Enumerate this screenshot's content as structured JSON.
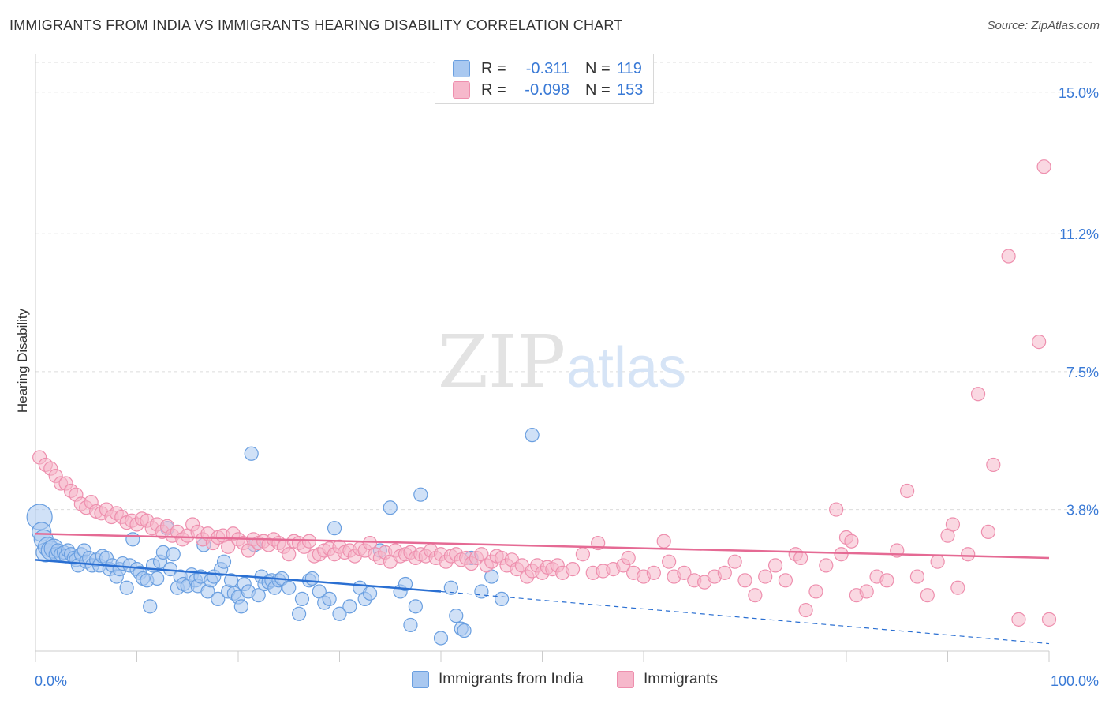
{
  "header": {
    "title": "IMMIGRANTS FROM INDIA VS IMMIGRANTS HEARING DISABILITY CORRELATION CHART",
    "source": "Source: ZipAtlas.com"
  },
  "watermark": {
    "zip": "ZIP",
    "atlas": "atlas"
  },
  "legend_top": {
    "rows": [
      {
        "r_label": "R =",
        "r_value": "-0.311",
        "n_label": "N =",
        "n_value": "119",
        "color": "#a9c8f0"
      },
      {
        "r_label": "R =",
        "r_value": "-0.098",
        "n_label": "N =",
        "n_value": "153",
        "color": "#f6b8cb"
      }
    ]
  },
  "legend_bottom": [
    {
      "label": "Immigrants from India",
      "color": "#a9c8f0"
    },
    {
      "label": "Immigrants",
      "color": "#f6b8cb"
    }
  ],
  "chart_data": {
    "type": "scatter",
    "title": "IMMIGRANTS FROM INDIA VS IMMIGRANTS HEARING DISABILITY CORRELATION CHART",
    "xlabel": "",
    "ylabel": "Hearing Disability",
    "xlim": [
      0,
      100
    ],
    "ylim": [
      0,
      15.8
    ],
    "y_ticks": [
      3.8,
      7.5,
      11.2,
      15.0
    ],
    "y_tick_labels": [
      "3.8%",
      "7.5%",
      "11.2%",
      "15.0%"
    ],
    "x_tick_labels": [
      "0.0%",
      "100.0%"
    ],
    "grid": true,
    "legend_position": "top-center",
    "colors": {
      "blue_fill": "#a9c8f0",
      "blue_stroke": "#6a9fe0",
      "blue_line": "#2a6fd2",
      "pink_fill": "#f6b8cb",
      "pink_stroke": "#ee8fae",
      "pink_line": "#e56a94",
      "tick_label": "#3a7ad6",
      "grid": "#dcdcdc"
    },
    "series": [
      {
        "name": "Immigrants from India",
        "trend": {
          "x": [
            0,
            40
          ],
          "y": [
            2.45,
            1.6
          ],
          "dashed_to": [
            100,
            0.2
          ]
        },
        "points": [
          [
            0.4,
            3.6
          ],
          [
            0.6,
            3.2
          ],
          [
            0.8,
            3.0
          ],
          [
            1,
            2.65
          ],
          [
            1.2,
            2.8
          ],
          [
            1.5,
            2.7
          ],
          [
            1.8,
            2.75
          ],
          [
            2,
            2.6
          ],
          [
            2.2,
            2.7
          ],
          [
            2.5,
            2.6
          ],
          [
            2.8,
            2.65
          ],
          [
            3,
            2.55
          ],
          [
            3.2,
            2.7
          ],
          [
            3.5,
            2.6
          ],
          [
            3.8,
            2.5
          ],
          [
            4,
            2.45
          ],
          [
            4.2,
            2.3
          ],
          [
            4.5,
            2.6
          ],
          [
            4.8,
            2.7
          ],
          [
            5,
            2.4
          ],
          [
            5.3,
            2.5
          ],
          [
            5.6,
            2.3
          ],
          [
            6,
            2.45
          ],
          [
            6.3,
            2.3
          ],
          [
            6.6,
            2.55
          ],
          [
            7,
            2.5
          ],
          [
            7.3,
            2.2
          ],
          [
            7.6,
            2.3
          ],
          [
            8,
            2.0
          ],
          [
            8.3,
            2.2
          ],
          [
            8.6,
            2.35
          ],
          [
            9,
            1.7
          ],
          [
            9.3,
            2.3
          ],
          [
            9.6,
            3.0
          ],
          [
            10,
            2.2
          ],
          [
            10.3,
            2.1
          ],
          [
            10.6,
            1.95
          ],
          [
            11,
            1.9
          ],
          [
            11.3,
            1.2
          ],
          [
            11.6,
            2.3
          ],
          [
            12,
            1.95
          ],
          [
            12.3,
            2.4
          ],
          [
            12.6,
            2.65
          ],
          [
            13,
            3.3
          ],
          [
            13.3,
            2.2
          ],
          [
            13.6,
            2.6
          ],
          [
            14,
            1.7
          ],
          [
            14.3,
            2.0
          ],
          [
            14.6,
            1.8
          ],
          [
            15,
            1.75
          ],
          [
            15.4,
            2.05
          ],
          [
            15.8,
            1.9
          ],
          [
            16,
            1.75
          ],
          [
            16.3,
            2.0
          ],
          [
            16.6,
            2.85
          ],
          [
            17,
            1.6
          ],
          [
            17.3,
            1.9
          ],
          [
            17.6,
            2.0
          ],
          [
            18,
            1.4
          ],
          [
            18.3,
            2.2
          ],
          [
            18.6,
            2.4
          ],
          [
            19,
            1.6
          ],
          [
            19.3,
            1.9
          ],
          [
            19.6,
            1.55
          ],
          [
            20,
            1.45
          ],
          [
            20.3,
            1.2
          ],
          [
            20.6,
            1.8
          ],
          [
            21,
            1.6
          ],
          [
            21.3,
            5.3
          ],
          [
            21.6,
            2.85
          ],
          [
            22,
            1.5
          ],
          [
            22.3,
            2.0
          ],
          [
            22.6,
            1.8
          ],
          [
            23,
            1.85
          ],
          [
            23.3,
            1.9
          ],
          [
            23.6,
            1.7
          ],
          [
            24,
            1.9
          ],
          [
            24.3,
            1.95
          ],
          [
            25,
            1.7
          ],
          [
            26,
            1.0
          ],
          [
            26.3,
            1.4
          ],
          [
            27,
            1.9
          ],
          [
            27.3,
            1.95
          ],
          [
            28,
            1.6
          ],
          [
            28.5,
            1.3
          ],
          [
            29,
            1.4
          ],
          [
            29.5,
            3.3
          ],
          [
            30,
            1.0
          ],
          [
            31,
            1.2
          ],
          [
            32,
            1.7
          ],
          [
            32.5,
            1.4
          ],
          [
            33,
            1.55
          ],
          [
            34,
            2.7
          ],
          [
            35,
            3.85
          ],
          [
            36,
            1.6
          ],
          [
            36.5,
            1.8
          ],
          [
            37,
            0.7
          ],
          [
            37.5,
            1.2
          ],
          [
            38,
            4.2
          ],
          [
            40,
            0.35
          ],
          [
            41,
            1.7
          ],
          [
            41.5,
            0.95
          ],
          [
            42,
            0.6
          ],
          [
            42.3,
            0.55
          ],
          [
            43,
            2.5
          ],
          [
            44,
            1.6
          ],
          [
            45,
            2.0
          ],
          [
            46,
            1.4
          ],
          [
            49,
            5.8
          ]
        ]
      },
      {
        "name": "Immigrants",
        "trend": {
          "x": [
            0,
            100
          ],
          "y": [
            3.15,
            2.5
          ]
        },
        "points": [
          [
            0.4,
            5.2
          ],
          [
            1,
            5.0
          ],
          [
            1.5,
            4.9
          ],
          [
            2,
            4.7
          ],
          [
            2.5,
            4.5
          ],
          [
            3,
            4.5
          ],
          [
            3.5,
            4.3
          ],
          [
            4,
            4.2
          ],
          [
            4.5,
            3.95
          ],
          [
            5,
            3.85
          ],
          [
            5.5,
            4.0
          ],
          [
            6,
            3.75
          ],
          [
            6.5,
            3.7
          ],
          [
            7,
            3.8
          ],
          [
            7.5,
            3.6
          ],
          [
            8,
            3.7
          ],
          [
            8.5,
            3.6
          ],
          [
            9,
            3.45
          ],
          [
            9.5,
            3.5
          ],
          [
            10,
            3.4
          ],
          [
            10.5,
            3.55
          ],
          [
            11,
            3.5
          ],
          [
            11.5,
            3.3
          ],
          [
            12,
            3.4
          ],
          [
            12.5,
            3.2
          ],
          [
            13,
            3.35
          ],
          [
            13.5,
            3.1
          ],
          [
            14,
            3.2
          ],
          [
            14.5,
            3.0
          ],
          [
            15,
            3.1
          ],
          [
            15.5,
            3.4
          ],
          [
            16,
            3.2
          ],
          [
            16.5,
            3.0
          ],
          [
            17,
            3.15
          ],
          [
            17.5,
            2.9
          ],
          [
            18,
            3.05
          ],
          [
            18.5,
            3.1
          ],
          [
            19,
            2.8
          ],
          [
            19.5,
            3.15
          ],
          [
            20,
            3.0
          ],
          [
            20.5,
            2.9
          ],
          [
            21,
            2.7
          ],
          [
            21.5,
            3.0
          ],
          [
            22,
            2.9
          ],
          [
            22.5,
            2.95
          ],
          [
            23,
            2.85
          ],
          [
            23.5,
            3.0
          ],
          [
            24,
            2.9
          ],
          [
            24.5,
            2.8
          ],
          [
            25,
            2.6
          ],
          [
            25.5,
            2.95
          ],
          [
            26,
            2.9
          ],
          [
            26.5,
            2.8
          ],
          [
            27,
            2.95
          ],
          [
            27.5,
            2.55
          ],
          [
            28,
            2.6
          ],
          [
            28.5,
            2.7
          ],
          [
            29,
            2.75
          ],
          [
            29.5,
            2.6
          ],
          [
            30,
            2.8
          ],
          [
            30.5,
            2.65
          ],
          [
            31,
            2.7
          ],
          [
            31.5,
            2.55
          ],
          [
            32,
            2.75
          ],
          [
            32.5,
            2.7
          ],
          [
            33,
            2.9
          ],
          [
            33.5,
            2.6
          ],
          [
            34,
            2.5
          ],
          [
            34.5,
            2.65
          ],
          [
            35,
            2.4
          ],
          [
            35.5,
            2.7
          ],
          [
            36,
            2.55
          ],
          [
            36.5,
            2.6
          ],
          [
            37,
            2.65
          ],
          [
            37.5,
            2.5
          ],
          [
            38,
            2.6
          ],
          [
            38.5,
            2.55
          ],
          [
            39,
            2.7
          ],
          [
            39.5,
            2.5
          ],
          [
            40,
            2.6
          ],
          [
            40.5,
            2.4
          ],
          [
            41,
            2.55
          ],
          [
            41.5,
            2.6
          ],
          [
            42,
            2.45
          ],
          [
            42.5,
            2.5
          ],
          [
            43,
            2.35
          ],
          [
            43.5,
            2.5
          ],
          [
            44,
            2.6
          ],
          [
            44.5,
            2.3
          ],
          [
            45,
            2.4
          ],
          [
            45.5,
            2.55
          ],
          [
            46,
            2.5
          ],
          [
            46.5,
            2.3
          ],
          [
            47,
            2.45
          ],
          [
            47.5,
            2.2
          ],
          [
            48,
            2.3
          ],
          [
            48.5,
            2.0
          ],
          [
            49,
            2.15
          ],
          [
            49.5,
            2.3
          ],
          [
            50,
            2.1
          ],
          [
            50.5,
            2.25
          ],
          [
            51,
            2.2
          ],
          [
            51.5,
            2.3
          ],
          [
            52,
            2.1
          ],
          [
            53,
            2.2
          ],
          [
            54,
            2.6
          ],
          [
            55,
            2.1
          ],
          [
            55.5,
            2.9
          ],
          [
            56,
            2.15
          ],
          [
            57,
            2.2
          ],
          [
            58,
            2.3
          ],
          [
            58.5,
            2.5
          ],
          [
            59,
            2.1
          ],
          [
            60,
            2.0
          ],
          [
            61,
            2.1
          ],
          [
            62,
            2.95
          ],
          [
            62.5,
            2.4
          ],
          [
            63,
            2.0
          ],
          [
            64,
            2.1
          ],
          [
            65,
            1.9
          ],
          [
            66,
            1.85
          ],
          [
            67,
            2.0
          ],
          [
            68,
            2.1
          ],
          [
            69,
            2.4
          ],
          [
            70,
            1.9
          ],
          [
            71,
            1.5
          ],
          [
            72,
            2.0
          ],
          [
            73,
            2.3
          ],
          [
            74,
            1.9
          ],
          [
            75,
            2.6
          ],
          [
            75.5,
            2.5
          ],
          [
            76,
            1.1
          ],
          [
            77,
            1.6
          ],
          [
            78,
            2.3
          ],
          [
            79,
            3.8
          ],
          [
            79.5,
            2.6
          ],
          [
            80,
            3.05
          ],
          [
            80.5,
            2.95
          ],
          [
            81,
            1.5
          ],
          [
            82,
            1.6
          ],
          [
            83,
            2.0
          ],
          [
            84,
            1.9
          ],
          [
            85,
            2.7
          ],
          [
            86,
            4.3
          ],
          [
            87,
            2.0
          ],
          [
            88,
            1.5
          ],
          [
            89,
            2.4
          ],
          [
            90,
            3.1
          ],
          [
            90.5,
            3.4
          ],
          [
            91,
            1.7
          ],
          [
            92,
            2.6
          ],
          [
            93,
            6.9
          ],
          [
            94,
            3.2
          ],
          [
            94.5,
            5.0
          ],
          [
            96,
            10.6
          ],
          [
            97,
            0.85
          ],
          [
            99,
            8.3
          ],
          [
            99.5,
            13.0
          ],
          [
            100,
            0.85
          ]
        ]
      }
    ]
  }
}
